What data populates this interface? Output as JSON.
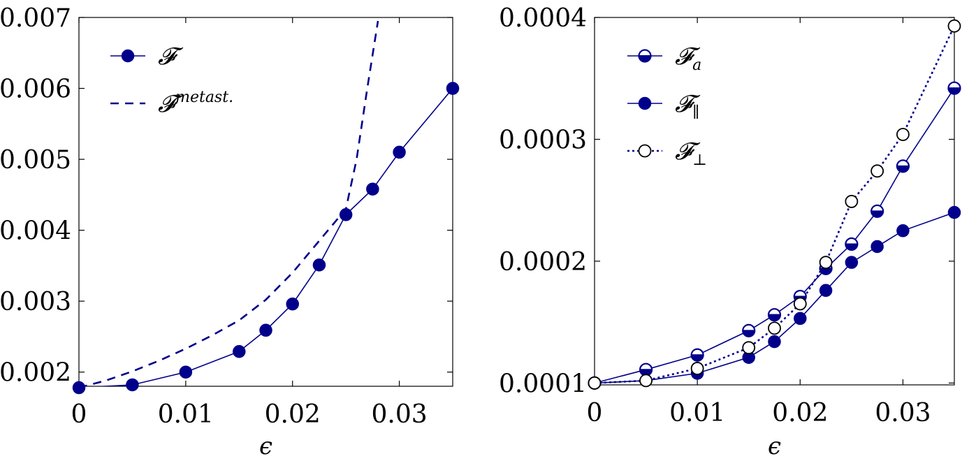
{
  "colors": {
    "series": "#00008B",
    "axis": "#000000",
    "open_marker_fill": "#ffffff"
  },
  "chart_data": [
    {
      "type": "line",
      "xlabel": "ϵ",
      "ylabel": "",
      "xlim": [
        0,
        0.035
      ],
      "ylim": [
        0.0018,
        0.007
      ],
      "grid": false,
      "legend_position": "top-left",
      "x_ticks": [
        0,
        0.01,
        0.02,
        0.03
      ],
      "x_tick_labels": [
        "0",
        "0.01",
        "0.02",
        "0.03"
      ],
      "y_ticks": [
        0.002,
        0.003,
        0.004,
        0.005,
        0.006,
        0.007
      ],
      "y_tick_labels": [
        "0.002",
        "0.003",
        "0.004",
        "0.005",
        "0.006",
        "0.007"
      ],
      "series": [
        {
          "name": "𝓕",
          "style": "solid",
          "marker": "filled-circle",
          "x": [
            0,
            0.005,
            0.01,
            0.015,
            0.0175,
            0.02,
            0.0225,
            0.025,
            0.0275,
            0.03,
            0.035
          ],
          "y": [
            0.00178,
            0.00182,
            0.002,
            0.00229,
            0.00259,
            0.00296,
            0.00351,
            0.00422,
            0.00458,
            0.0051,
            0.006
          ]
        },
        {
          "name": "𝓕",
          "superscript": "metast.",
          "style": "dashed",
          "marker": "none",
          "x": [
            0,
            0.0025,
            0.005,
            0.0075,
            0.01,
            0.0125,
            0.015,
            0.0175,
            0.02,
            0.0225,
            0.025,
            0.026,
            0.027,
            0.028
          ],
          "y": [
            0.00178,
            0.00188,
            0.00201,
            0.00216,
            0.00233,
            0.00252,
            0.00273,
            0.00302,
            0.0034,
            0.00385,
            0.0043,
            0.005,
            0.006,
            0.00695
          ]
        }
      ]
    },
    {
      "type": "line",
      "xlabel": "ϵ",
      "ylabel": "",
      "xlim": [
        0,
        0.035
      ],
      "ylim": [
        9.85e-05,
        0.0004
      ],
      "grid": false,
      "legend_position": "top-left",
      "x_ticks": [
        0,
        0.01,
        0.02,
        0.03
      ],
      "x_tick_labels": [
        "0",
        "0.01",
        "0.02",
        "0.03"
      ],
      "y_ticks": [
        0.0001,
        0.0002,
        0.0003,
        0.0004
      ],
      "y_tick_labels": [
        "0.0001",
        "0.0002",
        "0.0003",
        "0.0004"
      ],
      "series": [
        {
          "name": "𝓕",
          "subscript": "a",
          "style": "solid",
          "marker": "half-filled-circle",
          "x": [
            0,
            0.005,
            0.01,
            0.015,
            0.0175,
            0.02,
            0.0225,
            0.025,
            0.0275,
            0.03,
            0.035
          ],
          "y": [
            0.0001,
            0.000111,
            0.000123,
            0.000143,
            0.000156,
            0.000171,
            0.000194,
            0.000214,
            0.000241,
            0.000278,
            0.000342
          ]
        },
        {
          "name": "𝓕",
          "subscript": "∥",
          "style": "solid",
          "marker": "filled-circle",
          "x": [
            0,
            0.005,
            0.01,
            0.015,
            0.0175,
            0.02,
            0.0225,
            0.025,
            0.0275,
            0.03,
            0.035
          ],
          "y": [
            0.0001,
            0.000102,
            0.000108,
            0.000121,
            0.000134,
            0.000153,
            0.000176,
            0.000199,
            0.000212,
            0.000225,
            0.00024
          ]
        },
        {
          "name": "𝓕",
          "subscript": "⊥",
          "style": "dotted",
          "marker": "open-circle",
          "x": [
            0,
            0.005,
            0.01,
            0.015,
            0.0175,
            0.02,
            0.0225,
            0.025,
            0.0275,
            0.03,
            0.035
          ],
          "y": [
            0.0001,
            0.000102,
            0.000112,
            0.000129,
            0.000145,
            0.000165,
            0.000199,
            0.000249,
            0.000274,
            0.000304,
            0.000393
          ]
        }
      ]
    }
  ]
}
